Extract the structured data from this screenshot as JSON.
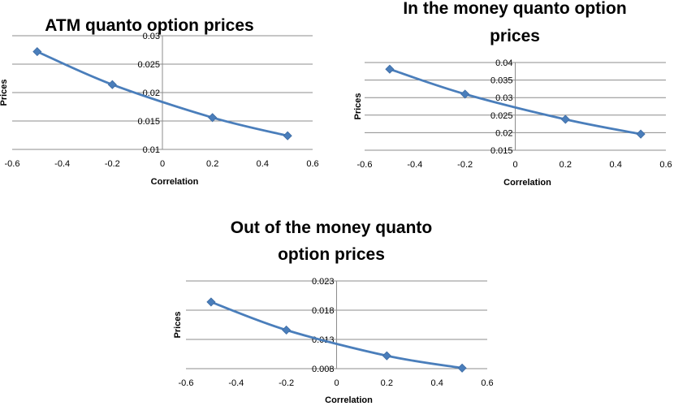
{
  "chart_data": [
    {
      "type": "line",
      "title": "ATM quanto option prices",
      "xlabel": "Correlation",
      "ylabel": "Prices",
      "xlim": [
        -0.6,
        0.6
      ],
      "ylim": [
        0.01,
        0.03
      ],
      "xticks": [
        "-0.6",
        "-0.4",
        "-0.2",
        "0",
        "0.2",
        "0.4",
        "0.6"
      ],
      "yticks": [
        "0.01",
        "0.015",
        "0.02",
        "0.025",
        "0.03"
      ],
      "grid": true,
      "series": [
        {
          "x": [
            -0.5,
            -0.2,
            0.2,
            0.5
          ],
          "y": [
            0.0272,
            0.0214,
            0.0156,
            0.0124
          ]
        }
      ]
    },
    {
      "type": "line",
      "title": "In the money quanto option prices",
      "xlabel": "Correlation",
      "ylabel": "Prices",
      "xlim": [
        -0.6,
        0.6
      ],
      "ylim": [
        0.015,
        0.04
      ],
      "xticks": [
        "-0.6",
        "-0.4",
        "-0.2",
        "0",
        "0.2",
        "0.4",
        "0.6"
      ],
      "yticks": [
        "0.015",
        "0.02",
        "0.025",
        "0.03",
        "0.035",
        "0.04"
      ],
      "grid": true,
      "series": [
        {
          "x": [
            -0.5,
            -0.2,
            0.2,
            0.5
          ],
          "y": [
            0.0381,
            0.031,
            0.0238,
            0.0196
          ]
        }
      ]
    },
    {
      "type": "line",
      "title": "Out of the money quanto option prices",
      "xlabel": "Correlation",
      "ylabel": "Prices",
      "xlim": [
        -0.6,
        0.6
      ],
      "ylim": [
        0.008,
        0.023
      ],
      "xticks": [
        "-0.6",
        "-0.4",
        "-0.2",
        "0",
        "0.2",
        "0.4",
        "0.6"
      ],
      "yticks": [
        "0.008",
        "0.013",
        "0.018",
        "0.023"
      ],
      "grid": true,
      "series": [
        {
          "x": [
            -0.5,
            -0.2,
            0.2,
            0.5
          ],
          "y": [
            0.0194,
            0.0146,
            0.0102,
            0.0081
          ]
        }
      ]
    }
  ]
}
